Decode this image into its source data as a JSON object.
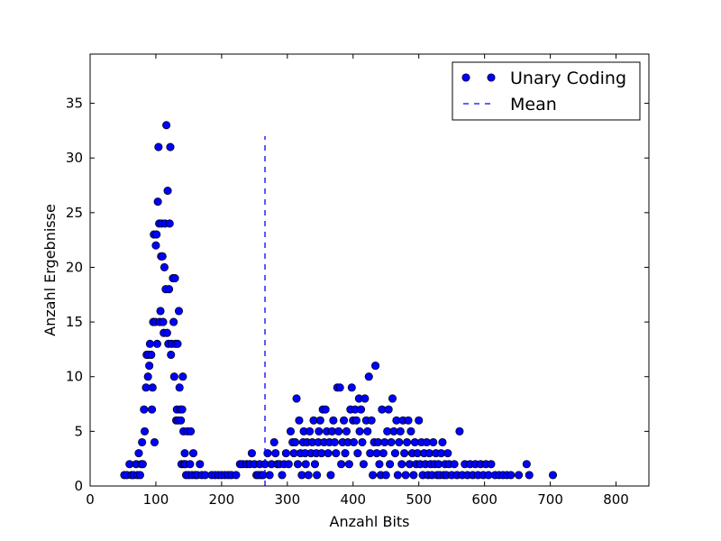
{
  "chart_data": {
    "type": "scatter",
    "title": "",
    "xlabel": "Anzahl Bits",
    "ylabel": "Anzahl Ergebnisse",
    "xlim": [
      0,
      850
    ],
    "ylim": [
      0,
      39.5
    ],
    "xticks": [
      "0",
      "100",
      "200",
      "300",
      "400",
      "500",
      "600",
      "700",
      "800"
    ],
    "yticks": [
      "0",
      "5",
      "10",
      "15",
      "20",
      "25",
      "30",
      "35"
    ],
    "grid": false,
    "legend_position": "top-right",
    "colors": {
      "points": "#0000ff",
      "mean": "#0000ff",
      "point_edge": "#000000"
    },
    "series": [
      {
        "name": "Unary Coding",
        "marker": "circle",
        "points": [
          [
            52,
            1
          ],
          [
            56,
            1
          ],
          [
            60,
            2
          ],
          [
            63,
            1
          ],
          [
            66,
            1
          ],
          [
            70,
            2
          ],
          [
            72,
            1
          ],
          [
            74,
            3
          ],
          [
            76,
            1
          ],
          [
            78,
            2
          ],
          [
            79,
            4
          ],
          [
            80,
            2
          ],
          [
            82,
            7
          ],
          [
            83,
            5
          ],
          [
            85,
            9
          ],
          [
            86,
            12
          ],
          [
            88,
            10
          ],
          [
            89,
            12
          ],
          [
            90,
            11
          ],
          [
            91,
            13
          ],
          [
            93,
            12
          ],
          [
            94,
            7
          ],
          [
            95,
            9
          ],
          [
            96,
            15
          ],
          [
            97,
            23
          ],
          [
            98,
            4
          ],
          [
            99,
            15
          ],
          [
            100,
            22
          ],
          [
            101,
            23
          ],
          [
            102,
            13
          ],
          [
            103,
            26
          ],
          [
            104,
            31
          ],
          [
            105,
            24
          ],
          [
            106,
            15
          ],
          [
            107,
            16
          ],
          [
            108,
            21
          ],
          [
            109,
            24
          ],
          [
            110,
            21
          ],
          [
            111,
            15
          ],
          [
            112,
            14
          ],
          [
            113,
            20
          ],
          [
            114,
            24
          ],
          [
            115,
            18
          ],
          [
            116,
            33
          ],
          [
            117,
            14
          ],
          [
            118,
            27
          ],
          [
            119,
            13
          ],
          [
            120,
            18
          ],
          [
            121,
            24
          ],
          [
            122,
            31
          ],
          [
            123,
            12
          ],
          [
            124,
            13
          ],
          [
            126,
            19
          ],
          [
            127,
            15
          ],
          [
            128,
            10
          ],
          [
            129,
            19
          ],
          [
            130,
            13
          ],
          [
            131,
            6
          ],
          [
            132,
            7
          ],
          [
            133,
            13
          ],
          [
            134,
            6
          ],
          [
            135,
            16
          ],
          [
            136,
            9
          ],
          [
            137,
            7
          ],
          [
            138,
            6
          ],
          [
            139,
            2
          ],
          [
            140,
            7
          ],
          [
            141,
            10
          ],
          [
            142,
            5
          ],
          [
            143,
            2
          ],
          [
            144,
            3
          ],
          [
            145,
            2
          ],
          [
            146,
            1
          ],
          [
            148,
            5
          ],
          [
            150,
            1
          ],
          [
            152,
            2
          ],
          [
            153,
            5
          ],
          [
            155,
            1
          ],
          [
            157,
            3
          ],
          [
            160,
            1
          ],
          [
            163,
            1
          ],
          [
            167,
            2
          ],
          [
            170,
            1
          ],
          [
            175,
            1
          ],
          [
            185,
            1
          ],
          [
            190,
            1
          ],
          [
            195,
            1
          ],
          [
            200,
            1
          ],
          [
            205,
            1
          ],
          [
            210,
            1
          ],
          [
            215,
            1
          ],
          [
            222,
            1
          ],
          [
            228,
            2
          ],
          [
            232,
            2
          ],
          [
            238,
            2
          ],
          [
            243,
            2
          ],
          [
            246,
            3
          ],
          [
            250,
            2
          ],
          [
            253,
            1
          ],
          [
            256,
            1
          ],
          [
            258,
            2
          ],
          [
            260,
            1
          ],
          [
            263,
            1
          ],
          [
            266,
            2
          ],
          [
            270,
            3
          ],
          [
            273,
            1
          ],
          [
            276,
            2
          ],
          [
            280,
            4
          ],
          [
            282,
            3
          ],
          [
            285,
            2
          ],
          [
            288,
            2
          ],
          [
            292,
            1
          ],
          [
            295,
            2
          ],
          [
            298,
            3
          ],
          [
            302,
            2
          ],
          [
            305,
            5
          ],
          [
            308,
            4
          ],
          [
            310,
            3
          ],
          [
            312,
            4
          ],
          [
            314,
            8
          ],
          [
            316,
            2
          ],
          [
            318,
            6
          ],
          [
            320,
            3
          ],
          [
            322,
            1
          ],
          [
            324,
            4
          ],
          [
            325,
            5
          ],
          [
            327,
            3
          ],
          [
            328,
            2
          ],
          [
            330,
            4
          ],
          [
            332,
            1
          ],
          [
            334,
            5
          ],
          [
            336,
            3
          ],
          [
            338,
            4
          ],
          [
            340,
            6
          ],
          [
            342,
            2
          ],
          [
            344,
            3
          ],
          [
            345,
            1
          ],
          [
            347,
            4
          ],
          [
            348,
            5
          ],
          [
            350,
            6
          ],
          [
            352,
            3
          ],
          [
            354,
            7
          ],
          [
            356,
            4
          ],
          [
            358,
            7
          ],
          [
            360,
            5
          ],
          [
            362,
            3
          ],
          [
            364,
            4
          ],
          [
            366,
            1
          ],
          [
            368,
            5
          ],
          [
            370,
            6
          ],
          [
            372,
            4
          ],
          [
            374,
            3
          ],
          [
            376,
            9
          ],
          [
            378,
            5
          ],
          [
            380,
            9
          ],
          [
            382,
            2
          ],
          [
            384,
            4
          ],
          [
            386,
            6
          ],
          [
            388,
            3
          ],
          [
            390,
            5
          ],
          [
            392,
            4
          ],
          [
            394,
            2
          ],
          [
            396,
            7
          ],
          [
            398,
            9
          ],
          [
            400,
            6
          ],
          [
            401,
            4
          ],
          [
            403,
            7
          ],
          [
            405,
            6
          ],
          [
            407,
            3
          ],
          [
            409,
            8
          ],
          [
            410,
            5
          ],
          [
            412,
            7
          ],
          [
            414,
            4
          ],
          [
            416,
            2
          ],
          [
            418,
            8
          ],
          [
            420,
            6
          ],
          [
            422,
            5
          ],
          [
            424,
            10
          ],
          [
            426,
            3
          ],
          [
            428,
            6
          ],
          [
            430,
            1
          ],
          [
            432,
            4
          ],
          [
            434,
            11
          ],
          [
            436,
            3
          ],
          [
            438,
            4
          ],
          [
            440,
            2
          ],
          [
            442,
            1
          ],
          [
            444,
            7
          ],
          [
            446,
            3
          ],
          [
            448,
            4
          ],
          [
            450,
            1
          ],
          [
            452,
            5
          ],
          [
            454,
            7
          ],
          [
            456,
            2
          ],
          [
            458,
            4
          ],
          [
            460,
            8
          ],
          [
            462,
            5
          ],
          [
            464,
            3
          ],
          [
            466,
            6
          ],
          [
            468,
            1
          ],
          [
            470,
            4
          ],
          [
            472,
            5
          ],
          [
            474,
            2
          ],
          [
            476,
            6
          ],
          [
            478,
            3
          ],
          [
            480,
            1
          ],
          [
            482,
            4
          ],
          [
            484,
            6
          ],
          [
            486,
            2
          ],
          [
            488,
            5
          ],
          [
            490,
            3
          ],
          [
            492,
            1
          ],
          [
            494,
            4
          ],
          [
            496,
            2
          ],
          [
            498,
            3
          ],
          [
            500,
            6
          ],
          [
            502,
            2
          ],
          [
            504,
            4
          ],
          [
            506,
            1
          ],
          [
            508,
            3
          ],
          [
            510,
            2
          ],
          [
            512,
            4
          ],
          [
            514,
            1
          ],
          [
            516,
            3
          ],
          [
            518,
            2
          ],
          [
            520,
            1
          ],
          [
            522,
            4
          ],
          [
            524,
            2
          ],
          [
            526,
            3
          ],
          [
            528,
            1
          ],
          [
            530,
            2
          ],
          [
            532,
            1
          ],
          [
            534,
            3
          ],
          [
            536,
            4
          ],
          [
            538,
            1
          ],
          [
            540,
            2
          ],
          [
            542,
            1
          ],
          [
            544,
            3
          ],
          [
            546,
            2
          ],
          [
            550,
            1
          ],
          [
            554,
            2
          ],
          [
            558,
            1
          ],
          [
            562,
            5
          ],
          [
            566,
            1
          ],
          [
            570,
            2
          ],
          [
            574,
            1
          ],
          [
            578,
            2
          ],
          [
            582,
            1
          ],
          [
            586,
            2
          ],
          [
            590,
            1
          ],
          [
            594,
            2
          ],
          [
            598,
            1
          ],
          [
            602,
            2
          ],
          [
            606,
            1
          ],
          [
            610,
            2
          ],
          [
            616,
            1
          ],
          [
            622,
            1
          ],
          [
            628,
            1
          ],
          [
            634,
            1
          ],
          [
            640,
            1
          ],
          [
            652,
            1
          ],
          [
            664,
            2
          ],
          [
            668,
            1
          ],
          [
            704,
            1
          ]
        ]
      },
      {
        "name": "Mean",
        "style": "dashed-line",
        "x": 266,
        "y_range": [
          0,
          32
        ]
      }
    ]
  }
}
